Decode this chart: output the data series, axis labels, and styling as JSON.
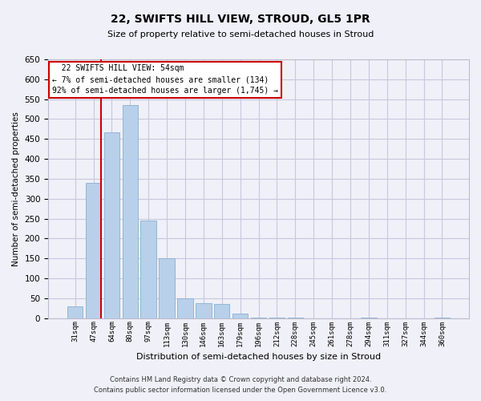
{
  "title": "22, SWIFTS HILL VIEW, STROUD, GL5 1PR",
  "subtitle": "Size of property relative to semi-detached houses in Stroud",
  "xlabel": "Distribution of semi-detached houses by size in Stroud",
  "ylabel": "Number of semi-detached properties",
  "bar_labels": [
    "31sqm",
    "47sqm",
    "64sqm",
    "80sqm",
    "97sqm",
    "113sqm",
    "130sqm",
    "146sqm",
    "163sqm",
    "179sqm",
    "196sqm",
    "212sqm",
    "228sqm",
    "245sqm",
    "261sqm",
    "278sqm",
    "294sqm",
    "311sqm",
    "327sqm",
    "344sqm",
    "360sqm"
  ],
  "bar_values": [
    30,
    340,
    467,
    535,
    245,
    151,
    50,
    38,
    35,
    12,
    2,
    2,
    1,
    0,
    0,
    0,
    1,
    0,
    0,
    0,
    2
  ],
  "bar_color": "#b8d0ea",
  "bar_edge_color": "#8ab0d0",
  "highlight_color": "#cc0000",
  "property_label": "22 SWIFTS HILL VIEW: 54sqm",
  "pct_smaller": 7,
  "count_smaller": 134,
  "pct_larger": 92,
  "count_larger": 1745,
  "ylim": [
    0,
    650
  ],
  "yticks": [
    0,
    50,
    100,
    150,
    200,
    250,
    300,
    350,
    400,
    450,
    500,
    550,
    600,
    650
  ],
  "footer_line1": "Contains HM Land Registry data © Crown copyright and database right 2024.",
  "footer_line2": "Contains public sector information licensed under the Open Government Licence v3.0.",
  "bg_color": "#f0f0f8",
  "grid_color": "#c8c8e0",
  "box_edge_color": "#cc0000",
  "title_fontsize": 10,
  "subtitle_fontsize": 8
}
